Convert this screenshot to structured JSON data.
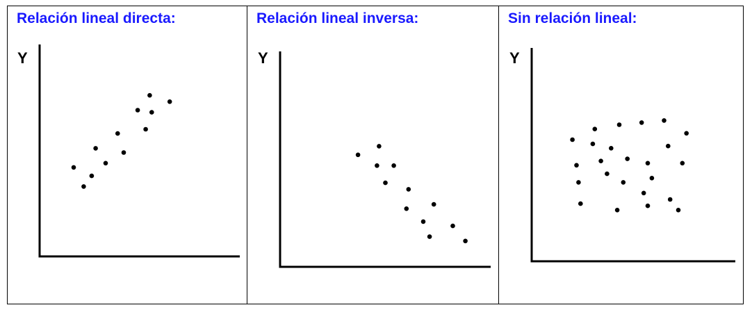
{
  "accent_color": "#1a1aff",
  "chart_data": [
    {
      "type": "scatter",
      "title": "Relación lineal directa:",
      "ylabel": "Y",
      "xlabel": "",
      "xlim": [
        0,
        10
      ],
      "ylim": [
        0,
        10
      ],
      "grid": false,
      "points": [
        [
          1.7,
          4.2
        ],
        [
          2.2,
          3.3
        ],
        [
          2.8,
          5.1
        ],
        [
          2.6,
          3.8
        ],
        [
          3.3,
          4.4
        ],
        [
          3.9,
          5.8
        ],
        [
          4.2,
          4.9
        ],
        [
          4.9,
          6.9
        ],
        [
          5.3,
          6.0
        ],
        [
          5.5,
          7.6
        ],
        [
          5.6,
          6.8
        ],
        [
          6.5,
          7.3
        ]
      ]
    },
    {
      "type": "scatter",
      "title": "Relación lineal inversa:",
      "ylabel": "Y",
      "xlabel": "",
      "xlim": [
        0,
        10
      ],
      "ylim": [
        0,
        10
      ],
      "grid": false,
      "points": [
        [
          3.7,
          5.2
        ],
        [
          4.6,
          4.7
        ],
        [
          4.7,
          5.6
        ],
        [
          5.0,
          3.9
        ],
        [
          5.4,
          4.7
        ],
        [
          6.1,
          3.6
        ],
        [
          6.0,
          2.7
        ],
        [
          6.8,
          2.1
        ],
        [
          7.1,
          1.4
        ],
        [
          7.3,
          2.9
        ],
        [
          8.2,
          1.9
        ],
        [
          8.8,
          1.2
        ]
      ]
    },
    {
      "type": "scatter",
      "title": "Sin relación lineal:",
      "ylabel": "Y",
      "xlabel": "",
      "xlim": [
        0,
        10
      ],
      "ylim": [
        0,
        10
      ],
      "grid": false,
      "points": [
        [
          2.0,
          5.7
        ],
        [
          3.1,
          6.2
        ],
        [
          4.3,
          6.4
        ],
        [
          5.4,
          6.5
        ],
        [
          6.5,
          6.6
        ],
        [
          7.6,
          6.0
        ],
        [
          3.0,
          5.5
        ],
        [
          3.9,
          5.3
        ],
        [
          6.7,
          5.4
        ],
        [
          2.2,
          4.5
        ],
        [
          3.4,
          4.7
        ],
        [
          4.7,
          4.8
        ],
        [
          5.7,
          4.6
        ],
        [
          7.4,
          4.6
        ],
        [
          2.3,
          3.7
        ],
        [
          3.7,
          4.1
        ],
        [
          4.5,
          3.7
        ],
        [
          5.9,
          3.9
        ],
        [
          5.5,
          3.2
        ],
        [
          6.8,
          2.9
        ],
        [
          2.4,
          2.7
        ],
        [
          4.2,
          2.4
        ],
        [
          5.7,
          2.6
        ],
        [
          7.2,
          2.4
        ]
      ]
    }
  ]
}
